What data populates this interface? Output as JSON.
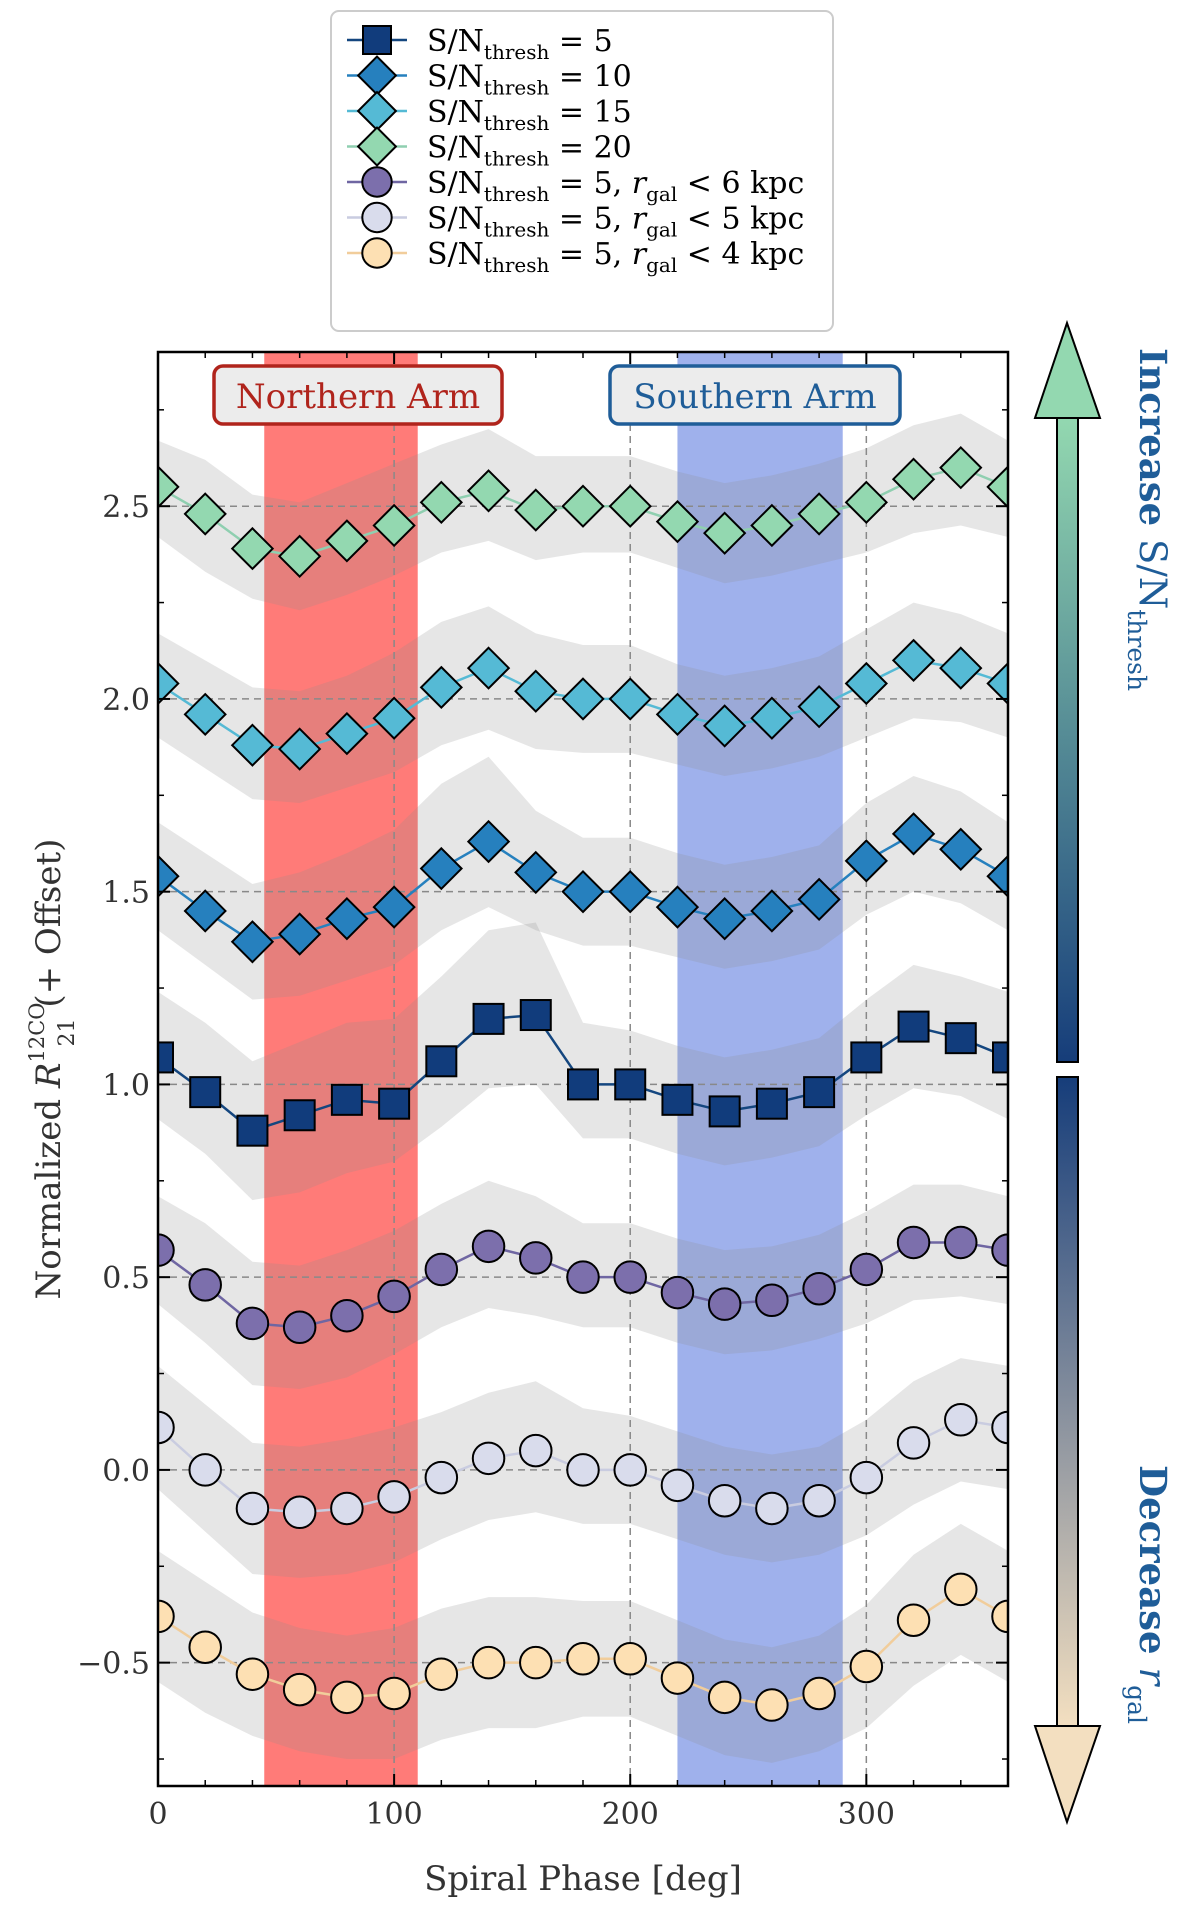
{
  "chart_data": {
    "type": "line",
    "xlabel": "Spiral Phase [deg]",
    "ylabel": {
      "prefix": "Normalized ",
      "symbol": "R",
      "superscript": "12CO",
      "subscript": "21",
      "suffix": " (+ Offset)"
    },
    "xlim": [
      0,
      360
    ],
    "ylim": [
      -0.82,
      2.9
    ],
    "xticks": [
      0,
      100,
      200,
      300
    ],
    "xtick_labels": [
      "0",
      "100",
      "200",
      "300"
    ],
    "yticks": [
      -0.5,
      0.0,
      0.5,
      1.0,
      1.5,
      2.0,
      2.5
    ],
    "ytick_labels": [
      "−0.5",
      "0.0",
      "0.5",
      "1.0",
      "1.5",
      "2.0",
      "2.5"
    ],
    "x": [
      0,
      20,
      40,
      60,
      80,
      100,
      120,
      140,
      160,
      180,
      200,
      220,
      240,
      260,
      280,
      300,
      320,
      340,
      360
    ],
    "regions": [
      {
        "name": "Northern Arm",
        "label": "Northern Arm",
        "x_range": [
          45,
          110
        ],
        "fill": "#ff7b78",
        "text_color": "#b0241c"
      },
      {
        "name": "Southern Arm",
        "label": "Southern Arm",
        "x_range": [
          220,
          290
        ],
        "fill": "#9fb1ec",
        "text_color": "#1f5d98"
      }
    ],
    "series": [
      {
        "key": "sn20",
        "marker": "diamond",
        "color": "#93d8b0",
        "line_color": "#8fcfb0",
        "legend": {
          "base": "S/N",
          "sub": "thresh",
          "rest": " = 20"
        },
        "values": [
          2.55,
          2.48,
          2.39,
          2.37,
          2.41,
          2.45,
          2.51,
          2.54,
          2.49,
          2.5,
          2.5,
          2.46,
          2.43,
          2.45,
          2.48,
          2.51,
          2.57,
          2.6,
          2.55
        ],
        "lower": [
          2.42,
          2.33,
          2.26,
          2.23,
          2.27,
          2.32,
          2.38,
          2.41,
          2.36,
          2.38,
          2.38,
          2.34,
          2.3,
          2.32,
          2.35,
          2.38,
          2.43,
          2.45,
          2.42
        ],
        "upper": [
          2.67,
          2.62,
          2.53,
          2.51,
          2.56,
          2.61,
          2.66,
          2.7,
          2.63,
          2.63,
          2.63,
          2.59,
          2.56,
          2.58,
          2.61,
          2.65,
          2.71,
          2.74,
          2.67
        ]
      },
      {
        "key": "sn15",
        "marker": "diamond",
        "color": "#55bad5",
        "line_color": "#55bad5",
        "legend": {
          "base": "S/N",
          "sub": "thresh",
          "rest": " = 15"
        },
        "values": [
          2.04,
          1.96,
          1.88,
          1.87,
          1.91,
          1.95,
          2.03,
          2.08,
          2.02,
          2.0,
          2.0,
          1.96,
          1.93,
          1.95,
          1.98,
          2.04,
          2.1,
          2.08,
          2.04
        ],
        "lower": [
          1.9,
          1.82,
          1.74,
          1.73,
          1.77,
          1.81,
          1.88,
          1.92,
          1.87,
          1.86,
          1.86,
          1.83,
          1.8,
          1.82,
          1.85,
          1.9,
          1.95,
          1.94,
          1.9
        ],
        "upper": [
          2.17,
          2.1,
          2.03,
          2.02,
          2.06,
          2.12,
          2.2,
          2.24,
          2.17,
          2.14,
          2.14,
          2.09,
          2.06,
          2.08,
          2.11,
          2.18,
          2.25,
          2.22,
          2.17
        ]
      },
      {
        "key": "sn10",
        "marker": "diamond",
        "color": "#2680be",
        "line_color": "#2680be",
        "legend": {
          "base": "S/N",
          "sub": "thresh",
          "rest": " = 10"
        },
        "values": [
          1.54,
          1.45,
          1.37,
          1.39,
          1.43,
          1.46,
          1.56,
          1.63,
          1.55,
          1.5,
          1.5,
          1.46,
          1.43,
          1.45,
          1.48,
          1.58,
          1.65,
          1.61,
          1.54
        ],
        "lower": [
          1.4,
          1.31,
          1.22,
          1.23,
          1.27,
          1.31,
          1.4,
          1.46,
          1.4,
          1.36,
          1.36,
          1.33,
          1.3,
          1.32,
          1.35,
          1.44,
          1.5,
          1.47,
          1.4
        ],
        "upper": [
          1.68,
          1.6,
          1.52,
          1.55,
          1.6,
          1.66,
          1.78,
          1.85,
          1.71,
          1.64,
          1.64,
          1.6,
          1.57,
          1.59,
          1.62,
          1.73,
          1.8,
          1.76,
          1.68
        ]
      },
      {
        "key": "sn5",
        "marker": "square",
        "color": "#113c7c",
        "line_color": "#14467f",
        "legend": {
          "base": "S/N",
          "sub": "thresh",
          "rest": " = 5"
        },
        "values": [
          1.07,
          0.98,
          0.88,
          0.92,
          0.96,
          0.95,
          1.06,
          1.17,
          1.18,
          1.0,
          1.0,
          0.96,
          0.93,
          0.95,
          0.98,
          1.07,
          1.15,
          1.12,
          1.07
        ],
        "lower": [
          0.91,
          0.82,
          0.7,
          0.72,
          0.77,
          0.8,
          0.89,
          0.99,
          1.0,
          0.86,
          0.86,
          0.82,
          0.79,
          0.81,
          0.84,
          0.92,
          0.99,
          0.97,
          0.91
        ],
        "upper": [
          1.24,
          1.16,
          1.06,
          1.11,
          1.16,
          1.17,
          1.28,
          1.4,
          1.42,
          1.16,
          1.14,
          1.1,
          1.07,
          1.09,
          1.12,
          1.22,
          1.31,
          1.28,
          1.24
        ]
      },
      {
        "key": "r6",
        "marker": "circle",
        "color": "#7c6fac",
        "line_color": "#6f66a2",
        "legend": {
          "base": "S/N",
          "sub": "thresh",
          "rest": " = 5, ",
          "r": "r",
          "rsub": "gal",
          "rtail": " < 6 kpc"
        },
        "values": [
          0.57,
          0.48,
          0.38,
          0.37,
          0.4,
          0.45,
          0.52,
          0.58,
          0.55,
          0.5,
          0.5,
          0.46,
          0.43,
          0.44,
          0.47,
          0.52,
          0.59,
          0.59,
          0.57
        ],
        "lower": [
          0.43,
          0.33,
          0.22,
          0.21,
          0.24,
          0.3,
          0.37,
          0.42,
          0.4,
          0.37,
          0.37,
          0.33,
          0.3,
          0.31,
          0.34,
          0.38,
          0.44,
          0.45,
          0.43
        ],
        "upper": [
          0.71,
          0.64,
          0.54,
          0.53,
          0.57,
          0.62,
          0.69,
          0.75,
          0.71,
          0.64,
          0.64,
          0.6,
          0.57,
          0.58,
          0.61,
          0.67,
          0.74,
          0.74,
          0.71
        ]
      },
      {
        "key": "r5",
        "marker": "circle",
        "color": "#d9dcec",
        "line_color": "#c9cce0",
        "legend": {
          "base": "S/N",
          "sub": "thresh",
          "rest": " = 5, ",
          "r": "r",
          "rsub": "gal",
          "rtail": " < 5 kpc"
        },
        "values": [
          0.11,
          0.0,
          -0.1,
          -0.11,
          -0.1,
          -0.07,
          -0.02,
          0.03,
          0.05,
          0.0,
          0.0,
          -0.04,
          -0.08,
          -0.1,
          -0.08,
          -0.02,
          0.07,
          0.13,
          0.11
        ],
        "lower": [
          -0.05,
          -0.16,
          -0.27,
          -0.28,
          -0.27,
          -0.24,
          -0.18,
          -0.13,
          -0.11,
          -0.14,
          -0.14,
          -0.18,
          -0.22,
          -0.24,
          -0.22,
          -0.17,
          -0.09,
          -0.03,
          -0.05
        ],
        "upper": [
          0.27,
          0.17,
          0.07,
          0.06,
          0.08,
          0.11,
          0.15,
          0.2,
          0.23,
          0.16,
          0.14,
          0.1,
          0.06,
          0.04,
          0.06,
          0.13,
          0.23,
          0.29,
          0.27
        ]
      },
      {
        "key": "r4",
        "marker": "circle",
        "color": "#fde0b3",
        "line_color": "#f1cd9b",
        "legend": {
          "base": "S/N",
          "sub": "thresh",
          "rest": " = 5, ",
          "r": "r",
          "rsub": "gal",
          "rtail": " < 4 kpc"
        },
        "values": [
          -0.38,
          -0.46,
          -0.53,
          -0.57,
          -0.59,
          -0.58,
          -0.53,
          -0.5,
          -0.5,
          -0.49,
          -0.49,
          -0.54,
          -0.59,
          -0.61,
          -0.58,
          -0.51,
          -0.39,
          -0.31,
          -0.38
        ],
        "lower": [
          -0.55,
          -0.63,
          -0.69,
          -0.73,
          -0.75,
          -0.75,
          -0.7,
          -0.67,
          -0.67,
          -0.64,
          -0.64,
          -0.69,
          -0.74,
          -0.76,
          -0.73,
          -0.67,
          -0.56,
          -0.48,
          -0.55
        ],
        "upper": [
          -0.21,
          -0.29,
          -0.37,
          -0.41,
          -0.43,
          -0.41,
          -0.36,
          -0.33,
          -0.33,
          -0.34,
          -0.34,
          -0.39,
          -0.44,
          -0.46,
          -0.43,
          -0.35,
          -0.22,
          -0.14,
          -0.21
        ]
      }
    ],
    "legend_order": [
      "sn5",
      "sn10",
      "sn15",
      "sn20",
      "r6",
      "r5",
      "r4"
    ],
    "side_arrows": {
      "top": {
        "word": "Increase",
        "base": "S/N",
        "sub": "thresh",
        "color": "#1f5d98",
        "gradient": [
          "#93d8b0",
          "#163d7a"
        ]
      },
      "bottom": {
        "word": "Decrease",
        "r": "r",
        "rsub": "gal",
        "color": "#1f5d98",
        "gradient": [
          "#163d7a",
          "#f3dfc0"
        ]
      }
    }
  }
}
